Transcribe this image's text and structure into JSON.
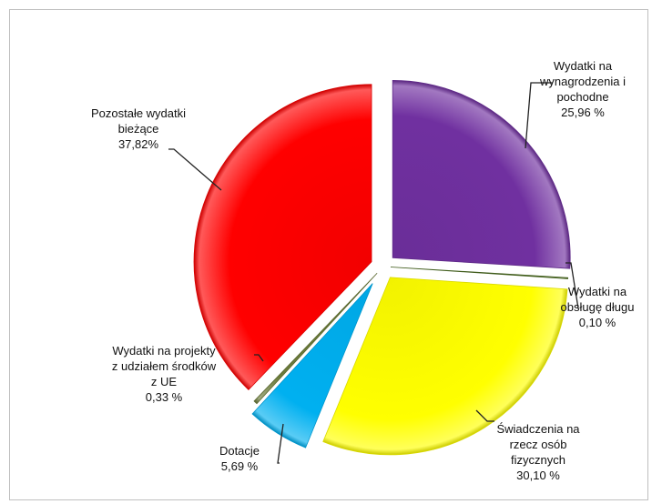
{
  "chart_data": {
    "type": "pie",
    "title": "",
    "exploded": true,
    "legend": "none",
    "slices": [
      {
        "label": [
          "Wydatki na",
          "wynagrodzenia i",
          "pochodne"
        ],
        "value_text": "25,96 %",
        "value": 25.96,
        "color": "#7030a0"
      },
      {
        "label": [
          "Wydatki na",
          "obsługę długu"
        ],
        "value_text": "0,10 %",
        "value": 0.1,
        "color": "#4a6b1f"
      },
      {
        "label": [
          "Świadczenia na",
          "rzecz osób",
          "fizycznych"
        ],
        "value_text": "30,10 %",
        "value": 30.1,
        "color": "#ffff00"
      },
      {
        "label": [
          "Dotacje"
        ],
        "value_text": "5,69 %",
        "value": 5.69,
        "color": "#00b0f0"
      },
      {
        "label": [
          "Wydatki na projekty",
          "z udziałem środków",
          "z UE"
        ],
        "value_text": "0,33 %",
        "value": 0.33,
        "color": "#6b7b3a"
      },
      {
        "label": [
          "Pozostałe wydatki",
          "bieżące"
        ],
        "value_text": "37,82%",
        "value": 37.82,
        "color": "#ff0000"
      }
    ]
  }
}
